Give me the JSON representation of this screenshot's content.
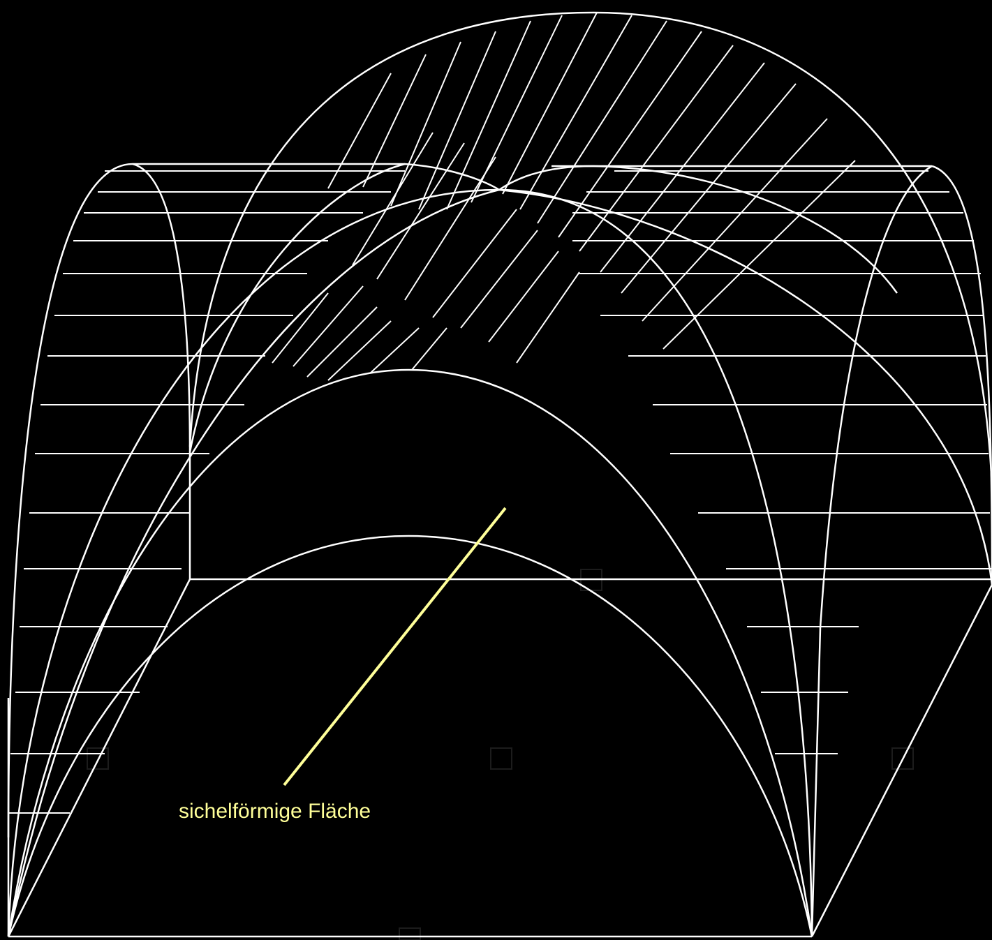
{
  "diagram": {
    "colors": {
      "background": "#000000",
      "lines": "#ffffff",
      "annotation": "#ffff99",
      "faint_markers": "#1a1a1a"
    },
    "annotation": {
      "label": "sichelförmige Fläche"
    }
  }
}
